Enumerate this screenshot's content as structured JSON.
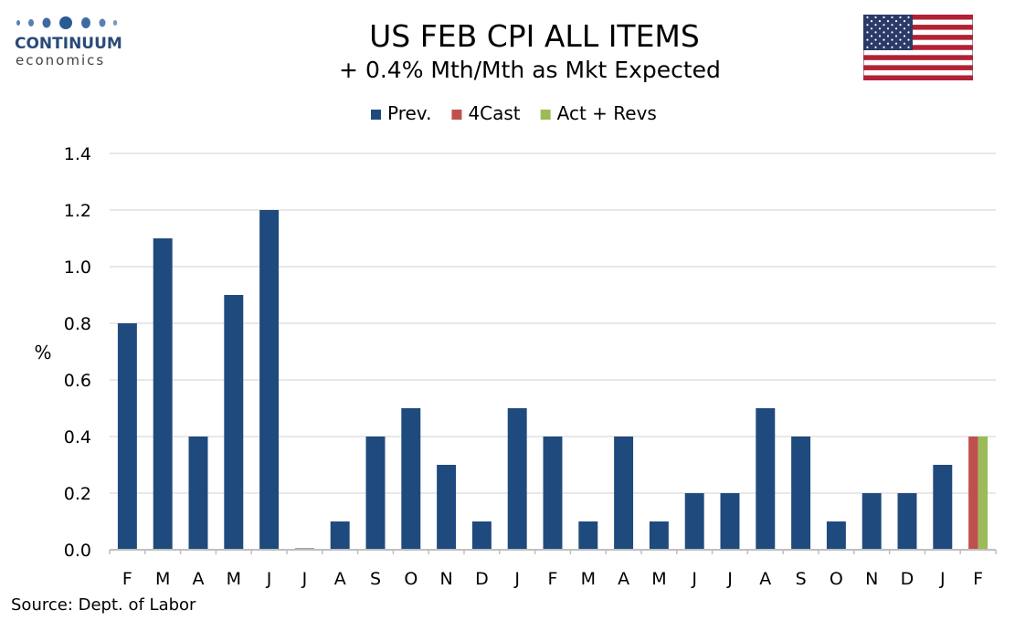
{
  "logo": {
    "word": "CONTINUUM",
    "sub": "economics",
    "color": "#2a4a7a"
  },
  "header": {
    "title": "US FEB CPI ALL ITEMS",
    "subtitle": "+ 0.4% Mth/Mth as Mkt Expected"
  },
  "flag_icon": "us-flag-icon",
  "source": "Source: Dept. of Labor",
  "chart_data": {
    "type": "bar",
    "ylabel": "%",
    "ylim": [
      0,
      1.4
    ],
    "yticks": [
      "0.0",
      "0.2",
      "0.4",
      "0.6",
      "0.8",
      "1.0",
      "1.2",
      "1.4"
    ],
    "grid": true,
    "legend_placement": "top-center",
    "categories": [
      "F",
      "M",
      "A",
      "M",
      "J",
      "J",
      "A",
      "S",
      "O",
      "N",
      "D",
      "J",
      "F",
      "M",
      "A",
      "M",
      "J",
      "J",
      "A",
      "S",
      "O",
      "N",
      "D",
      "J",
      "F"
    ],
    "series": [
      {
        "name": "Prev.",
        "color": "#1f4a7e",
        "values": [
          0.8,
          1.1,
          0.4,
          0.9,
          1.2,
          0.0,
          0.1,
          0.4,
          0.5,
          0.3,
          0.1,
          0.5,
          0.4,
          0.1,
          0.4,
          0.1,
          0.2,
          0.2,
          0.5,
          0.4,
          0.1,
          0.2,
          0.2,
          0.3,
          null
        ]
      },
      {
        "name": "4Cast",
        "color": "#c0504d",
        "values": [
          null,
          null,
          null,
          null,
          null,
          null,
          null,
          null,
          null,
          null,
          null,
          null,
          null,
          null,
          null,
          null,
          null,
          null,
          null,
          null,
          null,
          null,
          null,
          null,
          0.4
        ]
      },
      {
        "name": "Act + Revs",
        "color": "#9bbb59",
        "values": [
          null,
          null,
          null,
          null,
          null,
          null,
          null,
          null,
          null,
          null,
          null,
          null,
          null,
          null,
          null,
          null,
          null,
          null,
          null,
          null,
          null,
          null,
          null,
          null,
          0.4
        ]
      }
    ]
  }
}
